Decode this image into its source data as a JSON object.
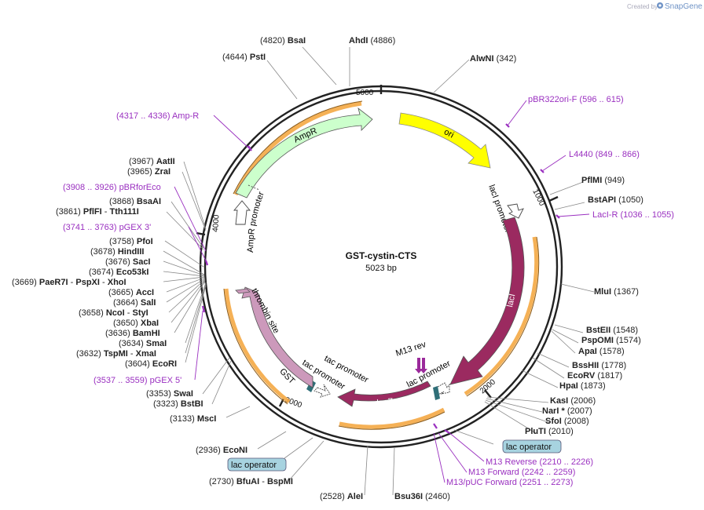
{
  "branding": {
    "prefix": "Created by",
    "name": "SnapGene"
  },
  "plasmid": {
    "name": "GST-cystin-CTS",
    "length": "5023 bp"
  },
  "ticks": [
    "5000",
    "1000",
    "2000",
    "3000",
    "4000"
  ],
  "features": [
    {
      "name": "ori",
      "color": "#ffff00"
    },
    {
      "name": "lacI promoter",
      "color": "#ffffff"
    },
    {
      "name": "lacI",
      "color": "#9b2a60"
    },
    {
      "name": "lacZα",
      "color": "#9b2a60"
    },
    {
      "name": "lac promoter",
      "color": "#ffffff"
    },
    {
      "name": "M13 rev",
      "color": "#9b2a9b"
    },
    {
      "name": "tac promoter",
      "color": "#ffffff"
    },
    {
      "name": "tac promoter",
      "color": "#ffffff"
    },
    {
      "name": "GST",
      "color": "#cc99bb"
    },
    {
      "name": "thrombin site",
      "color": "#cc99bb"
    },
    {
      "name": "AmpR",
      "color": "#ccffcc"
    },
    {
      "name": "AmpR promoter",
      "color": "#ffffff"
    }
  ],
  "lac_operators": [
    "lac operator",
    "lac operator"
  ],
  "enzymes": [
    {
      "pos": "(4820)",
      "name": "BsaI"
    },
    {
      "name": "AhdI",
      "pos": "(4886)"
    },
    {
      "pos": "(4644)",
      "name": "PstI"
    },
    {
      "name": "AlwNI",
      "pos": "(342)"
    },
    {
      "name": "PflMI",
      "pos": "(949)"
    },
    {
      "name": "BstAPI",
      "pos": "(1050)"
    },
    {
      "name": "MluI",
      "pos": "(1367)"
    },
    {
      "name": "BstEII",
      "pos": "(1548)"
    },
    {
      "name": "PspOMI",
      "pos": "(1574)"
    },
    {
      "name": "ApaI",
      "pos": "(1578)"
    },
    {
      "name": "BssHII",
      "pos": "(1778)"
    },
    {
      "name": "EcoRV",
      "pos": "(1817)"
    },
    {
      "name": "HpaI",
      "pos": "(1873)"
    },
    {
      "name": "KasI",
      "pos": "(2006)"
    },
    {
      "name": "NarI *",
      "pos": "(2007)"
    },
    {
      "name": "SfoI",
      "pos": "(2008)"
    },
    {
      "name": "PluTI",
      "pos": "(2010)"
    },
    {
      "pos": "(2528)",
      "name": "AleI"
    },
    {
      "name": "Bsu36I",
      "pos": "(2460)"
    },
    {
      "pos": "(2730)",
      "name": "BfuAI",
      "sep": "-",
      "name2": "BspMI"
    },
    {
      "pos": "(2936)",
      "name": "EcoNI"
    },
    {
      "pos": "(3133)",
      "name": "MscI"
    },
    {
      "pos": "(3353)",
      "name": "SwaI"
    },
    {
      "pos": "(3323)",
      "name": "BstBI"
    },
    {
      "pos": "(3604)",
      "name": "EcoRI"
    },
    {
      "pos": "(3632)",
      "name": "TspMI",
      "sep": "-",
      "name2": "XmaI"
    },
    {
      "pos": "(3634)",
      "name": "SmaI"
    },
    {
      "pos": "(3636)",
      "name": "BamHI"
    },
    {
      "pos": "(3650)",
      "name": "XbaI"
    },
    {
      "pos": "(3658)",
      "name": "NcoI",
      "sep": "-",
      "name2": "StyI"
    },
    {
      "pos": "(3664)",
      "name": "SalI"
    },
    {
      "pos": "(3665)",
      "name": "AccI"
    },
    {
      "pos": "(3669)",
      "name": "PaeR7I",
      "sep": "-",
      "name2": "PspXI",
      "sep2": "-",
      "name3": "XhoI"
    },
    {
      "pos": "(3674)",
      "name": "Eco53kI"
    },
    {
      "pos": "(3676)",
      "name": "SacI"
    },
    {
      "pos": "(3678)",
      "name": "HindIII"
    },
    {
      "pos": "(3758)",
      "name": "PfoI"
    },
    {
      "pos": "(3861)",
      "name": "PflFI",
      "sep": "-",
      "name2": "Tth111I"
    },
    {
      "pos": "(3868)",
      "name": "BsaAI"
    },
    {
      "pos": "(3965)",
      "name": "ZraI"
    },
    {
      "pos": "(3967)",
      "name": "AatII"
    }
  ],
  "primers": [
    {
      "name": "pBR322ori-F",
      "range": "(596 .. 615)"
    },
    {
      "name": "L4440",
      "range": "(849 .. 866)"
    },
    {
      "name": "LacI-R",
      "range": "(1036 .. 1055)"
    },
    {
      "name": "M13 Reverse",
      "range": "(2210 .. 2226)"
    },
    {
      "name": "M13 Forward",
      "range": "(2242 .. 2259)"
    },
    {
      "name": "M13/pUC Forward",
      "range": "(2251 .. 2273)"
    },
    {
      "name": "pGEX 5'",
      "range": "(3537 .. 3559)"
    },
    {
      "name": "pGEX 3'",
      "range": "(3741 .. 3763)"
    },
    {
      "name": "pBRforEco",
      "range": "(3908 .. 3926)"
    },
    {
      "name": "Amp-R",
      "range": "(4317 .. 4336)"
    }
  ]
}
